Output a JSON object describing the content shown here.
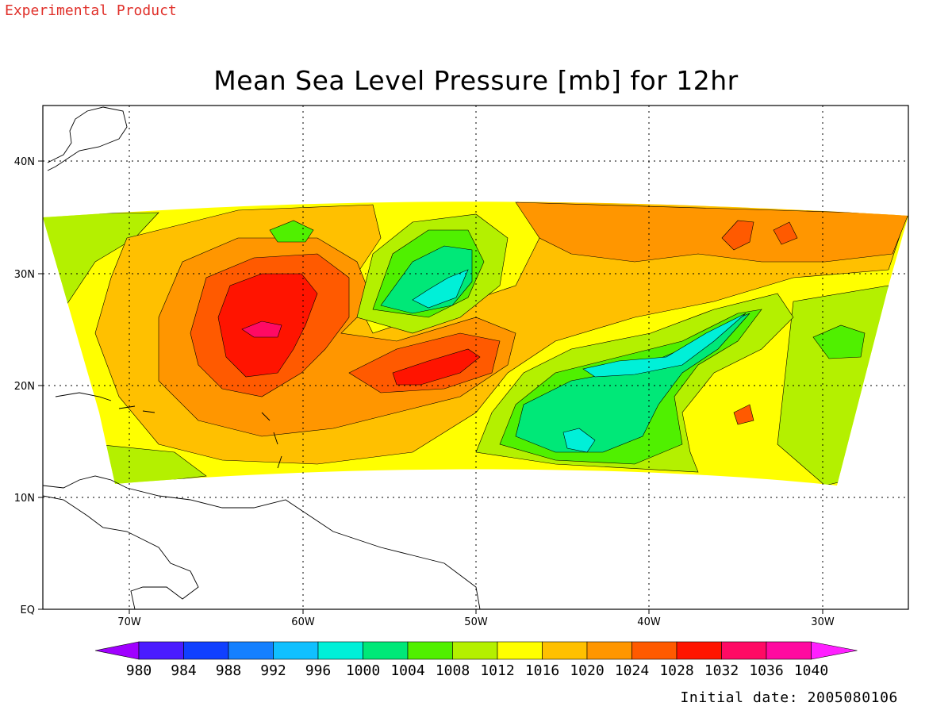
{
  "header": {
    "product_note": "Experimental Product",
    "title": "Mean Sea Level Pressure [mb] for 12hr"
  },
  "footer": {
    "initial_date": "Initial date: 2005080106"
  },
  "axes": {
    "lon_labels": [
      "70W",
      "60W",
      "50W",
      "40W",
      "30W"
    ],
    "lat_labels": [
      "EQ",
      "10N",
      "20N",
      "30N",
      "40N"
    ]
  },
  "colorbar": {
    "levels": [
      "980",
      "984",
      "988",
      "992",
      "996",
      "1000",
      "1004",
      "1008",
      "1012",
      "1016",
      "1020",
      "1024",
      "1028",
      "1032",
      "1036",
      "1040"
    ],
    "colors": [
      "#a000ff",
      "#4a1cff",
      "#1040ff",
      "#1480ff",
      "#10c0ff",
      "#00f0d8",
      "#00e878",
      "#50f000",
      "#b4f000",
      "#ffff00",
      "#ffc000",
      "#ff9600",
      "#ff5a00",
      "#ff1400",
      "#ff0a64",
      "#ff0aa0",
      "#ff20ff"
    ]
  },
  "pressure_regions": [
    {
      "name": "subtropical-high-west",
      "level": "1024"
    },
    {
      "name": "high-core-west",
      "level": "1032"
    },
    {
      "name": "high-center-west",
      "level": "1036"
    },
    {
      "name": "high-core-central",
      "level": "1032"
    },
    {
      "name": "low-north-central",
      "level": "1004"
    },
    {
      "name": "low-south-east",
      "level": "1004"
    },
    {
      "name": "high-north-east",
      "level": "1028"
    }
  ]
}
